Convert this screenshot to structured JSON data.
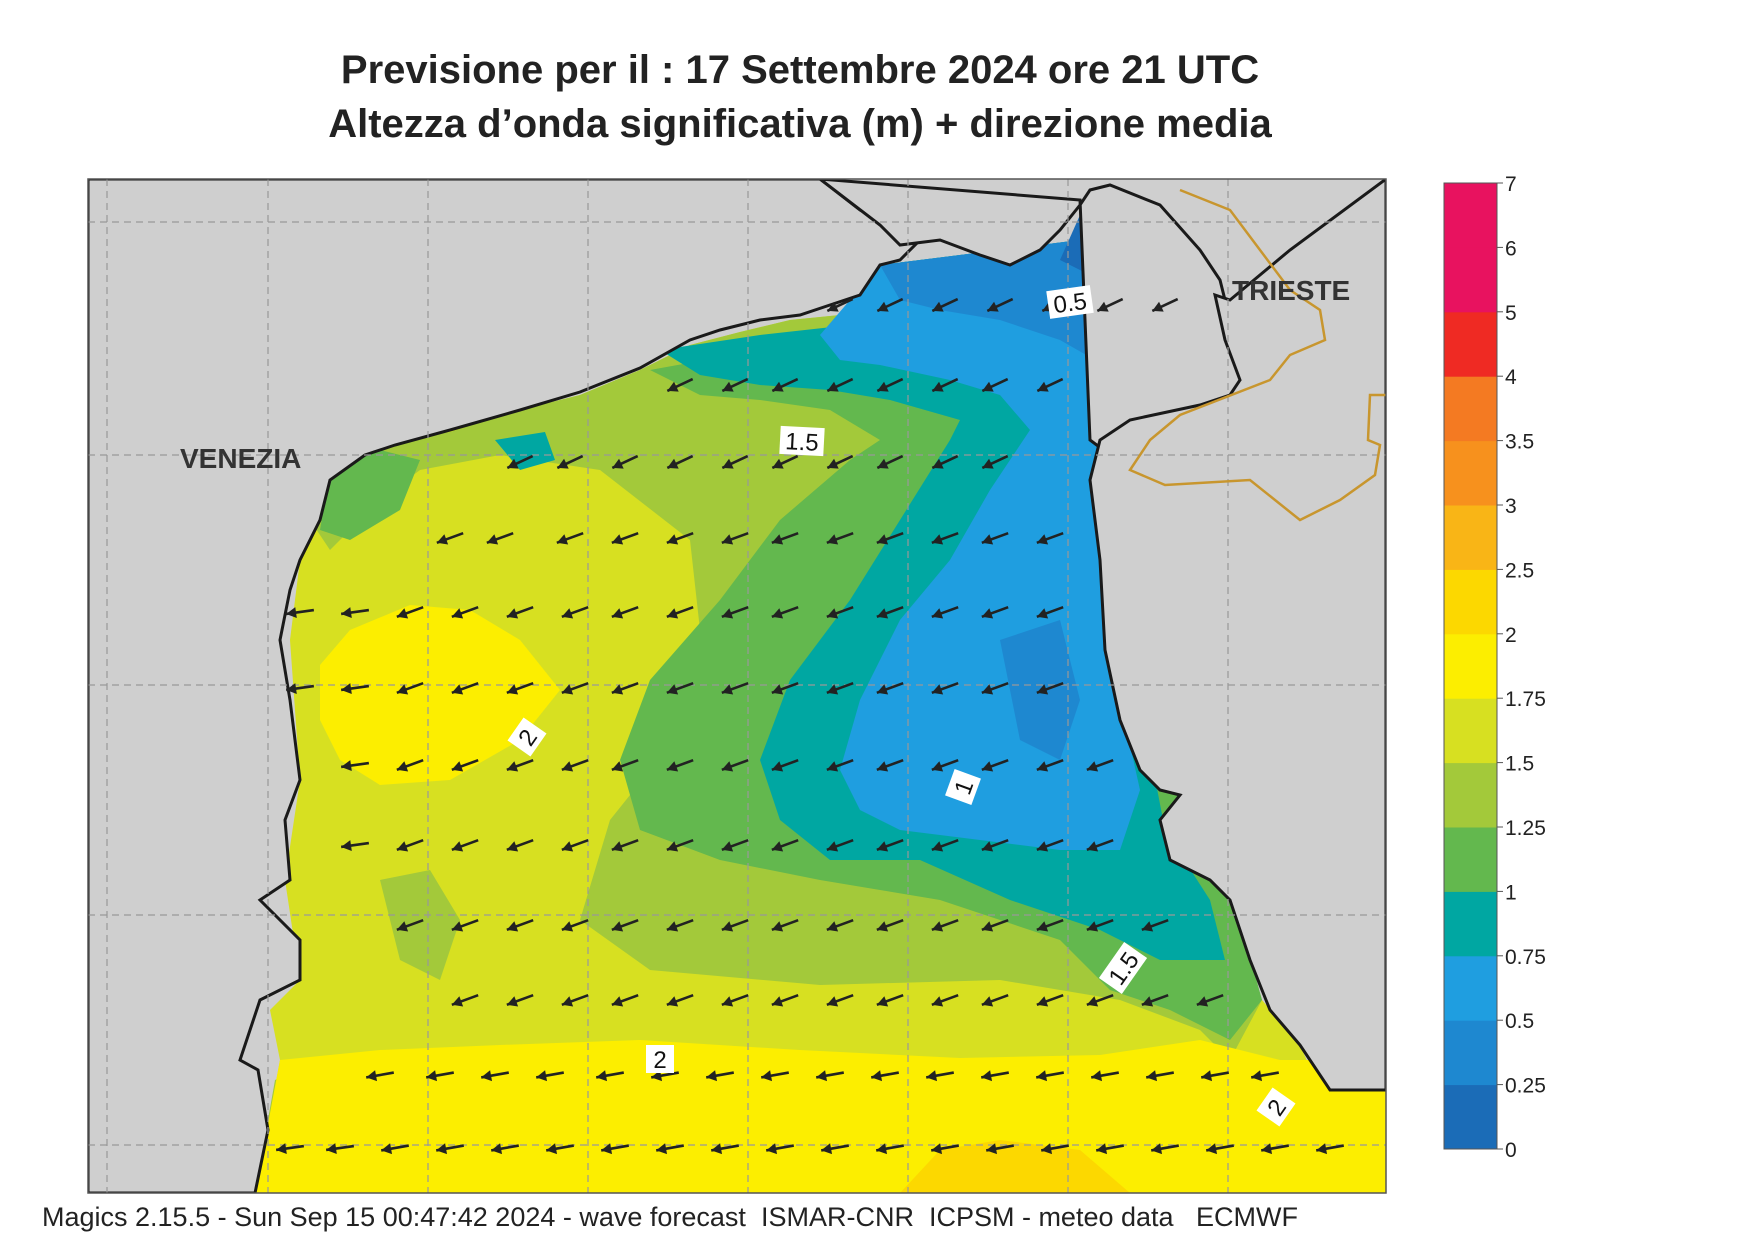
{
  "title": {
    "line1": "Previsione per il  :  17 Settembre 2024   ore 21 UTC",
    "line2": "Altezza d’onda significativa (m) + direzione media"
  },
  "map": {
    "places": [
      {
        "id": "venezia",
        "label": "VENEZIA"
      },
      {
        "id": "trieste",
        "label": "TRIESTE"
      }
    ],
    "contour_labels": [
      "0.5",
      "1.5",
      "2",
      "1",
      "1.5",
      "2",
      "2"
    ],
    "mean_wave_direction": "toward west-southwest (arrows)"
  },
  "colorbar": {
    "unit": "m",
    "ticks": [
      "0",
      "0.25",
      "0.5",
      "0.75",
      "1",
      "1.25",
      "1.5",
      "1.75",
      "2",
      "2.5",
      "3",
      "3.5",
      "4",
      "5",
      "6",
      "7"
    ],
    "colors": [
      "#1b6cb7",
      "#1e88d0",
      "#1f9ee0",
      "#00a7a2",
      "#63b84e",
      "#a3c93a",
      "#d7e021",
      "#fcee00",
      "#fcd800",
      "#f9b516",
      "#f7911d",
      "#f47a22",
      "#ef2a23",
      "#e8125f",
      "#e8125f"
    ]
  },
  "palette": {
    "land": "#cfcfcf",
    "coast": "#1a1a1a",
    "border": "#c8962e",
    "grid": "#999999",
    "arrow": "#222222"
  },
  "footer": "Magics 2.15.5 - Sun Sep 15 00:47:42 2024 - wave forecast  ISMAR-CNR  ICPSM - meteo data   ECMWF"
}
